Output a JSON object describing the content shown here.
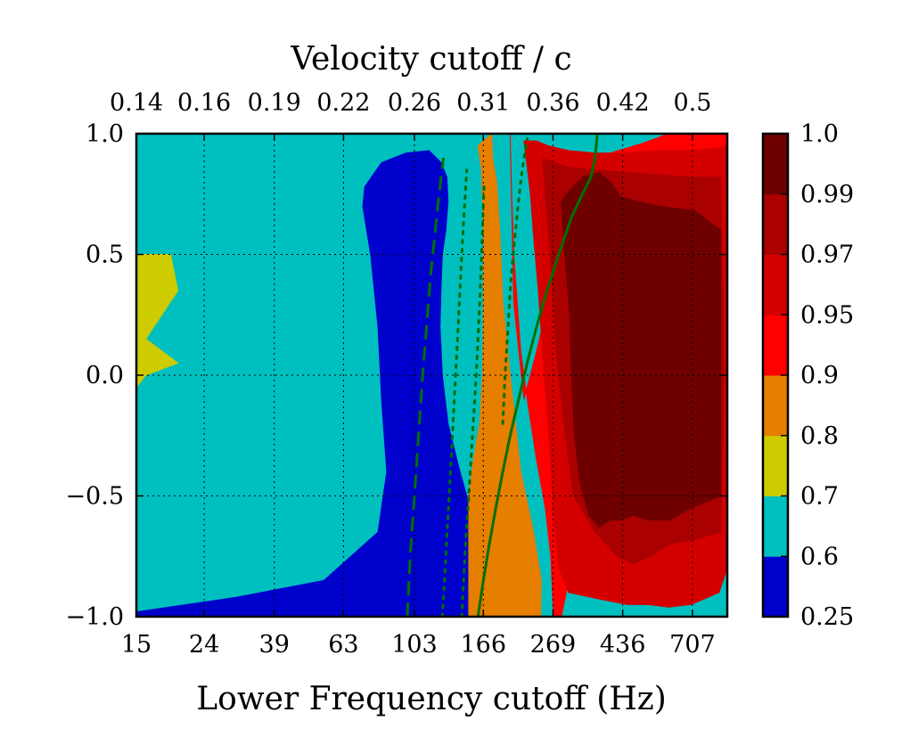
{
  "chart_data": {
    "type": "contourf",
    "title": "",
    "xlabel": "Lower Frequency cutoff (Hz)",
    "ylabel": "",
    "top_xlabel": "Velocity cutoff / c",
    "x_scale": "log",
    "xlim": [
      15,
      900
    ],
    "ylim": [
      -1.0,
      1.0
    ],
    "x_ticks": [
      15,
      24,
      39,
      63,
      103,
      166,
      269,
      436,
      707
    ],
    "x_tick_labels": [
      "15",
      "24",
      "39",
      "63",
      "103",
      "166",
      "269",
      "436",
      "707"
    ],
    "top_ticks_hz": [
      15,
      24,
      39,
      63,
      103,
      166,
      269,
      436,
      707
    ],
    "top_tick_labels": [
      "0.14",
      "0.16",
      "0.19",
      "0.22",
      "0.26",
      "0.31",
      "0.36",
      "0.42",
      "0.5"
    ],
    "y_ticks": [
      1.0,
      0.5,
      0.0,
      -0.5,
      -1.0
    ],
    "y_tick_labels": [
      "1.0",
      "0.5",
      "0.0",
      "−0.5",
      "−1.0"
    ],
    "grid": true,
    "levels": [
      0.25,
      0.6,
      0.7,
      0.8,
      0.9,
      0.95,
      0.97,
      0.99,
      1.0
    ],
    "level_labels": [
      "0.25",
      "0.6",
      "0.7",
      "0.8",
      "0.9",
      "0.95",
      "0.97",
      "0.99",
      "1.0"
    ],
    "band_colors": [
      "#0000cc",
      "#00bfbf",
      "#cccc00",
      "#e67e00",
      "#ff0000",
      "#d40000",
      "#aa0000",
      "#6e0000"
    ],
    "colorbar_labels": [
      "0.25",
      "0.6",
      "0.7",
      "0.8",
      "0.9",
      "0.95",
      "0.97",
      "0.99",
      "1.0"
    ],
    "bands": [
      {
        "level": 0.6,
        "x": [
          15,
          15,
          20,
          24,
          28,
          36,
          39,
          45,
          45,
          53,
          53,
          45,
          45,
          38,
          30,
          24,
          19,
          15
        ],
        "y": [
          0.8,
          0.58,
          0.55,
          0.5,
          0.45,
          0.3,
          0.18,
          0.15,
          0.1,
          0.0,
          -0.05,
          -0.08,
          -0.12,
          -0.25,
          -0.4,
          -0.5,
          -0.58,
          -0.7
        ]
      },
      {
        "level": 0.7,
        "x": [
          15,
          15,
          19,
          20,
          16,
          20,
          16,
          15
        ],
        "y": [
          0.5,
          0.5,
          0.5,
          0.35,
          0.15,
          0.05,
          0.0,
          -0.05
        ]
      },
      {
        "level": 0.25,
        "x": [
          73,
          82,
          97,
          114,
          124,
          129,
          130,
          128,
          125,
          124,
          123,
          125,
          130,
          140,
          148,
          158,
          170,
          180,
          183,
          184,
          15,
          15,
          30,
          55,
          80,
          85,
          82,
          80,
          76,
          72
        ],
        "y": [
          0.78,
          0.88,
          0.92,
          0.93,
          0.88,
          0.82,
          0.72,
          0.6,
          0.5,
          0.38,
          0.2,
          0.0,
          -0.2,
          -0.38,
          -0.5,
          -0.6,
          -0.7,
          -0.85,
          -0.95,
          -1.0,
          -1.0,
          -0.98,
          -0.92,
          -0.85,
          -0.65,
          -0.4,
          -0.1,
          0.2,
          0.5,
          0.7
        ]
      },
      {
        "level": 0.8,
        "x": [
          176,
          177,
          182,
          186,
          190,
          200,
          215,
          235,
          248,
          247,
          150,
          150,
          155,
          162,
          165,
          166,
          166,
          164,
          160
        ],
        "y": [
          1.0,
          0.9,
          0.8,
          0.6,
          0.3,
          0.0,
          -0.4,
          -0.65,
          -0.85,
          -1.0,
          -1.0,
          -0.5,
          -0.35,
          -0.2,
          0.0,
          0.3,
          0.6,
          0.85,
          0.95
        ]
      },
      {
        "level": 0.9,
        "x": [
          200,
          202,
          205,
          210,
          215,
          225,
          240,
          255,
          265,
          270,
          285,
          300,
          330,
          360,
          400,
          400,
          900,
          900,
          600,
          500,
          400,
          360,
          300,
          280,
          260,
          240,
          220,
          205
        ],
        "y": [
          1.0,
          0.75,
          0.5,
          0.3,
          0.1,
          -0.1,
          -0.35,
          -0.55,
          -0.75,
          -1.0,
          -1.0,
          -0.85,
          -0.7,
          -0.5,
          -0.2,
          0.0,
          0.0,
          1.0,
          1.0,
          0.96,
          0.92,
          0.85,
          0.7,
          0.5,
          0.3,
          0.1,
          -0.1,
          0.3
        ]
      },
      {
        "level": 0.95,
        "x": [
          220,
          224,
          230,
          236,
          243,
          250,
          258,
          265,
          270,
          280,
          300,
          380,
          450,
          520,
          600,
          700,
          850,
          900,
          900,
          850,
          700,
          560,
          450,
          360,
          300,
          260,
          240
        ],
        "y": [
          0.97,
          0.88,
          0.75,
          0.55,
          0.35,
          0.1,
          -0.15,
          -0.35,
          -0.6,
          -0.8,
          -0.9,
          -0.93,
          -0.95,
          -0.95,
          -0.96,
          -0.95,
          -0.9,
          -0.8,
          0.95,
          0.94,
          0.93,
          0.93,
          0.92,
          0.92,
          0.93,
          0.95,
          0.97
        ]
      },
      {
        "level": 0.97,
        "x": [
          250,
          255,
          262,
          268,
          275,
          290,
          310,
          360,
          420,
          470,
          530,
          600,
          720,
          860,
          880,
          860,
          700,
          560,
          440,
          360,
          300,
          270
        ],
        "y": [
          0.9,
          0.75,
          0.55,
          0.35,
          0.1,
          -0.2,
          -0.5,
          -0.65,
          -0.75,
          -0.78,
          -0.75,
          -0.7,
          -0.68,
          -0.65,
          0.0,
          0.82,
          0.82,
          0.83,
          0.84,
          0.85,
          0.86,
          0.88
        ]
      },
      {
        "level": 0.99,
        "x": [
          285,
          290,
          296,
          302,
          306,
          312,
          325,
          345,
          370,
          400,
          430,
          470,
          520,
          600,
          700,
          860,
          860,
          720,
          560,
          480,
          430,
          400,
          370,
          330,
          300
        ],
        "y": [
          0.72,
          0.55,
          0.4,
          0.25,
          0.0,
          -0.25,
          -0.45,
          -0.58,
          -0.63,
          -0.6,
          -0.6,
          -0.58,
          -0.6,
          -0.6,
          -0.55,
          -0.5,
          0.6,
          0.68,
          0.7,
          0.72,
          0.74,
          0.8,
          0.84,
          0.82,
          0.76
        ]
      }
    ],
    "lines": [
      {
        "style": "solid",
        "color": "#007000",
        "x": [
          160,
          166,
          173,
          181,
          190,
          200,
          212,
          225,
          240,
          258,
          280,
          305,
          330,
          350,
          360,
          366
        ],
        "y": [
          -1.0,
          -0.85,
          -0.7,
          -0.55,
          -0.4,
          -0.25,
          -0.1,
          0.05,
          0.2,
          0.35,
          0.5,
          0.65,
          0.75,
          0.82,
          0.9,
          1.0
        ]
      },
      {
        "style": "dashed",
        "color": "#007000",
        "x": [
          98,
          100,
          103,
          106,
          109,
          112,
          115,
          118,
          121,
          124,
          126
        ],
        "y": [
          -1.0,
          -0.75,
          -0.5,
          -0.25,
          0.0,
          0.2,
          0.4,
          0.55,
          0.7,
          0.82,
          0.9
        ]
      },
      {
        "style": "dotted",
        "color": "#007000",
        "x": [
          125,
          128,
          131,
          134,
          137,
          140,
          143,
          146,
          148
        ],
        "y": [
          -1.0,
          -0.75,
          -0.5,
          -0.25,
          0.0,
          0.25,
          0.5,
          0.72,
          0.85
        ]
      },
      {
        "style": "dotted",
        "color": "#007000",
        "x": [
          143,
          146,
          150,
          154,
          158,
          162,
          165,
          167
        ],
        "y": [
          -1.0,
          -0.75,
          -0.5,
          -0.25,
          0.0,
          0.3,
          0.6,
          0.8
        ]
      },
      {
        "style": "dotted",
        "color": "#007000",
        "x": [
          190,
          193,
          197,
          201,
          206,
          211,
          216,
          220,
          225
        ],
        "y": [
          -0.2,
          0.0,
          0.2,
          0.4,
          0.55,
          0.7,
          0.82,
          0.9,
          0.98
        ]
      }
    ]
  }
}
